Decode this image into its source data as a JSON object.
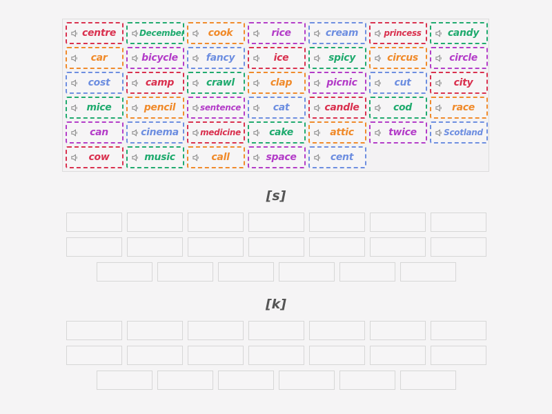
{
  "colors": {
    "red": "#d9304e",
    "green": "#1faa6e",
    "orange": "#f08a2a",
    "purple": "#b33cc8",
    "blue": "#6d8ee0"
  },
  "word_bank": {
    "icon": "speaker-icon",
    "tiles": [
      {
        "word": "centre",
        "color": "red"
      },
      {
        "word": "December",
        "color": "green"
      },
      {
        "word": "cook",
        "color": "orange"
      },
      {
        "word": "rice",
        "color": "purple"
      },
      {
        "word": "cream",
        "color": "blue"
      },
      {
        "word": "princess",
        "color": "red"
      },
      {
        "word": "candy",
        "color": "green"
      },
      {
        "word": "car",
        "color": "orange"
      },
      {
        "word": "bicycle",
        "color": "purple"
      },
      {
        "word": "fancy",
        "color": "blue"
      },
      {
        "word": "ice",
        "color": "red"
      },
      {
        "word": "spicy",
        "color": "green"
      },
      {
        "word": "circus",
        "color": "orange"
      },
      {
        "word": "circle",
        "color": "purple"
      },
      {
        "word": "cost",
        "color": "blue"
      },
      {
        "word": "camp",
        "color": "red"
      },
      {
        "word": "crawl",
        "color": "green"
      },
      {
        "word": "clap",
        "color": "orange"
      },
      {
        "word": "picnic",
        "color": "purple"
      },
      {
        "word": "cut",
        "color": "blue"
      },
      {
        "word": "city",
        "color": "red"
      },
      {
        "word": "mice",
        "color": "green"
      },
      {
        "word": "pencil",
        "color": "orange"
      },
      {
        "word": "sentence",
        "color": "purple"
      },
      {
        "word": "cat",
        "color": "blue"
      },
      {
        "word": "candle",
        "color": "red"
      },
      {
        "word": "cod",
        "color": "green"
      },
      {
        "word": "race",
        "color": "orange"
      },
      {
        "word": "can",
        "color": "purple"
      },
      {
        "word": "cinema",
        "color": "blue"
      },
      {
        "word": "medicine",
        "color": "red"
      },
      {
        "word": "cake",
        "color": "green"
      },
      {
        "word": "attic",
        "color": "orange"
      },
      {
        "word": "twice",
        "color": "purple"
      },
      {
        "word": "Scotland",
        "color": "blue"
      },
      {
        "word": "cow",
        "color": "red"
      },
      {
        "word": "music",
        "color": "green"
      },
      {
        "word": "call",
        "color": "orange"
      },
      {
        "word": "space",
        "color": "purple"
      },
      {
        "word": "cent",
        "color": "blue"
      }
    ]
  },
  "groups": [
    {
      "title": "[s]",
      "slot_count": 20
    },
    {
      "title": "[k]",
      "slot_count": 20
    }
  ]
}
